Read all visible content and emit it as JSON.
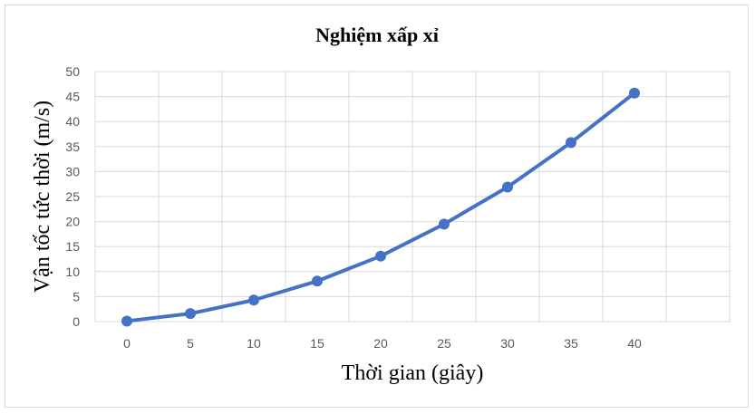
{
  "chart_data": {
    "type": "line",
    "title": "Nghiệm xấp xỉ",
    "xlabel": "Thời gian (giây)",
    "ylabel": "Vận tốc tức thời (m/s)",
    "x": [
      0,
      5,
      10,
      15,
      20,
      25,
      30,
      35,
      40
    ],
    "x_ticks": [
      0,
      5,
      10,
      15,
      20,
      25,
      30,
      35,
      40
    ],
    "y_ticks": [
      0,
      5,
      10,
      15,
      20,
      25,
      30,
      35,
      40,
      45,
      50
    ],
    "ylim": [
      0,
      50
    ],
    "grid": true,
    "legend": "none",
    "series": [
      {
        "values": [
          0.1,
          1.6,
          4.3,
          8.1,
          13.1,
          19.5,
          26.9,
          35.8,
          45.7
        ],
        "color": "#4472C4"
      }
    ]
  }
}
